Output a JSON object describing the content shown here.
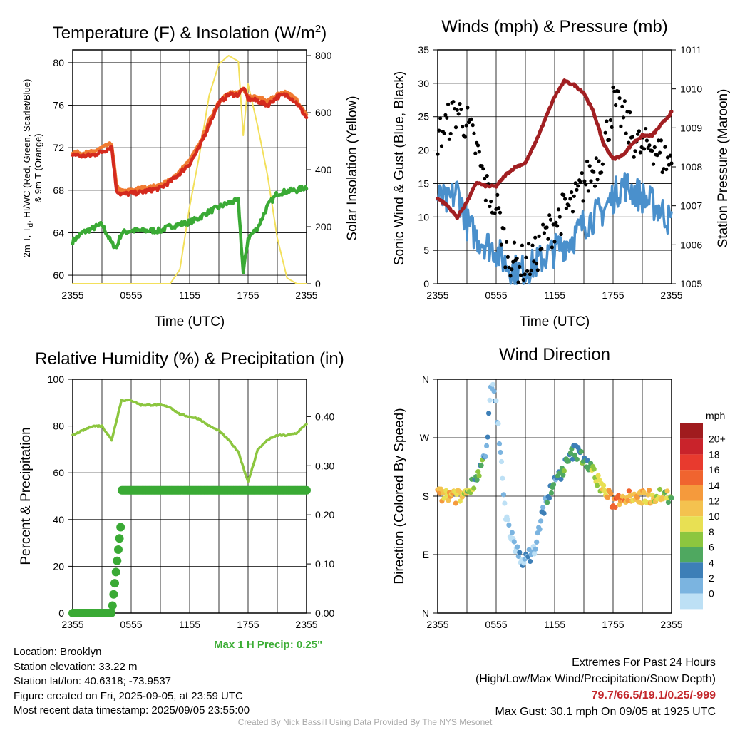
{
  "panels": {
    "temperature": {
      "title_main": "Temperature (F) & Insolation (W/m",
      "title_sup": "2",
      "title_end": ")",
      "ylabel_line1": "2m T, T",
      "ylabel_sub": "d",
      "ylabel_line1_end": ", HI/WC (Red, Green, Scarlet/Blue)",
      "ylabel_line2": "& 9m T (Orange)",
      "y2label": "Solar Insolation (Yellow)",
      "xlabel": "Time (UTC)"
    },
    "winds": {
      "title": "Winds (mph) & Pressure (mb)",
      "ylabel": "Sonic Wind & Gust (Blue, Black)",
      "y2label": "Station Pressure (Maroon)",
      "xlabel": "Time (UTC)"
    },
    "humidity": {
      "title": "Relative Humidity (%) & Precipitation (in)",
      "ylabel": "Percent & Precipitation",
      "max_precip": "Max 1 H Precip: 0.25\""
    },
    "direction": {
      "title": "Wind Direction",
      "ylabel": "Direction (Colored By Speed)",
      "colorbar_title": "mph"
    }
  },
  "chart_data": [
    {
      "type": "line",
      "title": "Temperature (F) & Insolation (W/m2)",
      "xlabel": "Time (UTC)",
      "ylabel": "2m T, Td, HI/WC (Red, Green, Scarlet/Blue) & 9m T (Orange)",
      "y2label": "Solar Insolation (Yellow)",
      "x_ticks": [
        "2355",
        "0555",
        "1155",
        "1755",
        "2355"
      ],
      "x_hours_since_start": [
        0,
        1,
        2,
        3,
        4,
        4.5,
        5,
        6,
        7,
        8,
        9,
        10,
        11,
        12,
        13,
        14,
        15,
        16,
        17,
        17.5,
        18,
        19,
        20,
        21,
        22,
        23,
        24
      ],
      "y_ticks": [
        60,
        64,
        68,
        72,
        76,
        80
      ],
      "y2_ticks": [
        0,
        200,
        400,
        600,
        800
      ],
      "ylim": [
        59.2,
        81.2
      ],
      "y2lim": [
        0,
        820
      ],
      "series": [
        {
          "name": "2m T",
          "color": "#d42a1e",
          "axis": "left",
          "values": [
            71.4,
            71.2,
            71.3,
            71.6,
            72.1,
            68.0,
            67.6,
            67.7,
            67.8,
            68.0,
            68.2,
            68.8,
            69.6,
            70.5,
            72.0,
            74.2,
            76.2,
            77.0,
            77.0,
            77.6,
            76.6,
            76.4,
            76.0,
            76.8,
            77.0,
            76.2,
            74.8
          ]
        },
        {
          "name": "9m T",
          "color": "#f07b32",
          "axis": "left",
          "values": [
            71.6,
            71.5,
            71.6,
            72.0,
            72.4,
            68.4,
            67.9,
            68.0,
            68.2,
            68.3,
            68.5,
            69.0,
            69.8,
            70.8,
            72.3,
            74.5,
            76.4,
            77.1,
            77.2,
            77.6,
            76.9,
            76.7,
            76.4,
            77.0,
            77.2,
            76.5,
            75.0
          ]
        },
        {
          "name": "Td",
          "color": "#3aaa35",
          "axis": "left",
          "values": [
            63.2,
            64.0,
            64.4,
            64.8,
            63.0,
            62.6,
            64.0,
            64.2,
            64.2,
            64.2,
            64.2,
            64.6,
            64.8,
            65.0,
            65.4,
            66.0,
            66.4,
            66.8,
            67.0,
            60.2,
            63.5,
            64.5,
            66.5,
            67.7,
            67.9,
            68.0,
            68.3
          ]
        },
        {
          "name": "Solar Insolation",
          "color": "#f3e05b",
          "axis": "right",
          "values": [
            0,
            0,
            0,
            0,
            0,
            0,
            0,
            0,
            0,
            0,
            0,
            0,
            50,
            270,
            450,
            660,
            770,
            800,
            780,
            520,
            700,
            550,
            380,
            160,
            20,
            0,
            0
          ]
        }
      ]
    },
    {
      "type": "line",
      "title": "Winds (mph) & Pressure (mb)",
      "xlabel": "Time (UTC)",
      "ylabel": "Sonic Wind & Gust (Blue, Black)",
      "y2label": "Station Pressure (Maroon)",
      "x_ticks": [
        "2355",
        "0555",
        "1155",
        "1755",
        "2355"
      ],
      "y_ticks": [
        0,
        5,
        10,
        15,
        20,
        25,
        30,
        35
      ],
      "y2_ticks": [
        1005,
        1006,
        1007,
        1008,
        1009,
        1010,
        1011
      ],
      "ylim": [
        0,
        35
      ],
      "y2lim": [
        1005,
        1011
      ],
      "x_hours_since_start": [
        0,
        1,
        2,
        3,
        4,
        5,
        6,
        7,
        8,
        9,
        10,
        11,
        12,
        13,
        14,
        15,
        16,
        17,
        18,
        19,
        20,
        21,
        22,
        23,
        24
      ],
      "series": [
        {
          "name": "Sonic Wind",
          "color": "#4a90cc",
          "axis": "left",
          "values": [
            13,
            12,
            14,
            9,
            7,
            6,
            5,
            3,
            2,
            2,
            3,
            4,
            5,
            6,
            7,
            9,
            10,
            11,
            13,
            15,
            14,
            13,
            12,
            11,
            9
          ]
        },
        {
          "name": "Gust",
          "color": "#000000",
          "axis": "left",
          "values": [
            22,
            24,
            26,
            24,
            20,
            14,
            12,
            5,
            3,
            3,
            4,
            7,
            9,
            11,
            12,
            15,
            17,
            20,
            27,
            25,
            22,
            20,
            21,
            19,
            18
          ]
        },
        {
          "name": "Station Pressure",
          "color": "#a11f22",
          "axis": "right",
          "values": [
            1007.2,
            1007.0,
            1006.7,
            1007.1,
            1007.6,
            1007.5,
            1007.5,
            1007.8,
            1008.0,
            1008.1,
            1008.6,
            1009.2,
            1009.8,
            1010.2,
            1010.1,
            1009.9,
            1009.4,
            1008.6,
            1008.2,
            1008.3,
            1008.6,
            1008.8,
            1008.8,
            1009.1,
            1009.4
          ]
        }
      ]
    },
    {
      "type": "line",
      "title": "Relative Humidity (%) & Precipitation (in)",
      "ylabel": "Percent & Precipitation",
      "x_ticks": [
        "2355",
        "0555",
        "1155",
        "1755",
        "2355"
      ],
      "y_ticks": [
        0,
        20,
        40,
        60,
        80,
        100
      ],
      "y2_ticks": [
        "0.00",
        "0.10",
        "0.20",
        "0.30",
        "0.40"
      ],
      "ylim": [
        0,
        100
      ],
      "y2lim": [
        0,
        0.476
      ],
      "x_hours_since_start": [
        0,
        1,
        2,
        3,
        4,
        5,
        6,
        7,
        8,
        9,
        10,
        11,
        12,
        13,
        14,
        15,
        16,
        17,
        18,
        19,
        20,
        21,
        22,
        23,
        24
      ],
      "series": [
        {
          "name": "Relative Humidity",
          "color": "#8cc63f",
          "axis": "left",
          "values": [
            76,
            78,
            80,
            80,
            74,
            91,
            91,
            89,
            89,
            89,
            88,
            85,
            84,
            83,
            80,
            78,
            74,
            69,
            56,
            70,
            74,
            76,
            76,
            77,
            81
          ]
        },
        {
          "name": "Precipitation",
          "color": "#3aaa35",
          "axis": "right",
          "values": [
            0,
            0,
            0,
            0,
            0.07,
            0.25,
            0.25,
            0.25,
            0.25,
            0.25,
            0.25,
            0.25,
            0.25,
            0.25,
            0.25,
            0.25,
            0.25,
            0.25,
            0.25,
            0.25,
            0.25,
            0.25,
            0.25,
            0.25,
            0.25
          ]
        }
      ]
    },
    {
      "type": "scatter",
      "title": "Wind Direction",
      "ylabel": "Direction (Colored By Speed)",
      "x_ticks": [
        "2355",
        "0555",
        "1155",
        "1755",
        "2355"
      ],
      "y_ticks": [
        "N",
        "E",
        "S",
        "W",
        "N"
      ],
      "y_degrees": [
        0,
        90,
        180,
        270,
        360
      ],
      "ylim": [
        0,
        360
      ],
      "colorbar": {
        "title": "mph",
        "labels": [
          "20+",
          "18",
          "16",
          "14",
          "12",
          "10",
          "8",
          "6",
          "4",
          "2",
          "0"
        ],
        "colors": [
          "#a01b1e",
          "#c9232b",
          "#e83a2e",
          "#f0642f",
          "#f59a3c",
          "#f4c24f",
          "#e8e053",
          "#8cc63f",
          "#4fa860",
          "#3d7fb7",
          "#7bb4e0",
          "#bde0f5"
        ]
      },
      "x_hours_since_start": [
        0,
        1,
        2,
        3,
        4,
        5,
        5.5,
        6,
        7,
        8,
        9,
        10,
        11,
        12,
        13,
        14,
        15,
        16,
        17,
        18,
        19,
        20,
        21,
        22,
        23,
        24
      ],
      "direction_deg": [
        182,
        180,
        178,
        186,
        210,
        245,
        355,
        320,
        150,
        95,
        80,
        100,
        170,
        200,
        225,
        250,
        240,
        215,
        190,
        170,
        180,
        182,
        178,
        180,
        183,
        178
      ],
      "speed_mph": [
        14,
        13,
        12,
        10,
        7,
        5,
        1,
        2,
        1,
        2,
        3,
        4,
        4,
        5,
        6,
        7,
        6,
        9,
        12,
        16,
        15,
        14,
        13,
        12,
        11,
        9
      ]
    }
  ],
  "footer": {
    "location": "Location: Brooklyn",
    "elevation": "Station elevation: 33.22 m",
    "latlon": "Station lat/lon: 40.6318; -73.9537",
    "created": "Figure created on Fri, 2025-09-05, at 23:59 UTC",
    "recent": "Most recent data timestamp: 2025/09/05 23:55:00",
    "ext_title": "Extremes For Past 24 Hours",
    "ext_desc": "(High/Low/Max Wind/Precipitation/Snow Depth)",
    "ext_values": "79.7/66.5/19.1/0.25/-999",
    "max_gust": "Max Gust: 30.1 mph On 09/05 at 1925 UTC",
    "credit": "Created By Nick Bassill Using Data Provided By The NYS Mesonet"
  }
}
